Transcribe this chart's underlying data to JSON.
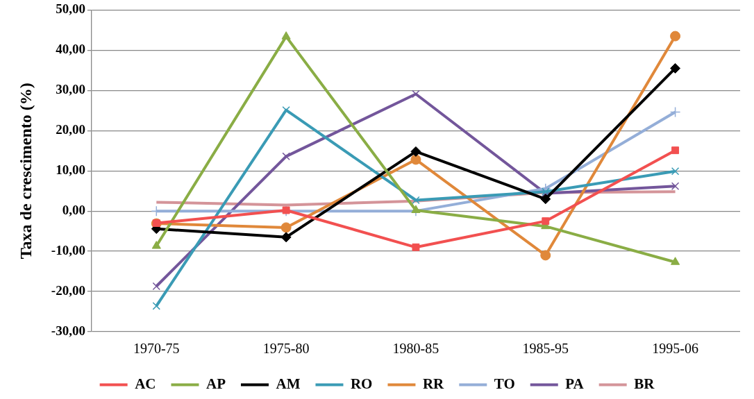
{
  "chart_data": {
    "type": "line",
    "ylabel": "Taxa de crescimento (%)",
    "categories": [
      "1970-75",
      "1975-80",
      "1980-85",
      "1985-95",
      "1995-06"
    ],
    "series": [
      {
        "name": "AC",
        "color": "#f25050",
        "marker": "square",
        "values": [
          -3.0,
          0.2,
          -9.0,
          -2.5,
          15.1
        ]
      },
      {
        "name": "AP",
        "color": "#8aad45",
        "marker": "triangle",
        "values": [
          -8.7,
          43.4,
          0.2,
          -3.8,
          -12.7
        ]
      },
      {
        "name": "AM",
        "color": "#000000",
        "marker": "diamond",
        "values": [
          -4.4,
          -6.5,
          14.8,
          3.0,
          35.5
        ]
      },
      {
        "name": "RO",
        "color": "#3a9bb5",
        "marker": "cross",
        "values": [
          -23.6,
          25.1,
          2.7,
          4.8,
          9.9
        ]
      },
      {
        "name": "RR",
        "color": "#e0883a",
        "marker": "circle",
        "values": [
          -3.1,
          -4.1,
          12.8,
          -11.0,
          43.5
        ]
      },
      {
        "name": "TO",
        "color": "#94aed8",
        "marker": "plus",
        "values": [
          0.0,
          0.0,
          0.0,
          5.6,
          24.6
        ]
      },
      {
        "name": "PA",
        "color": "#73569b",
        "marker": "cross",
        "values": [
          -18.7,
          13.6,
          29.1,
          4.4,
          6.2
        ]
      },
      {
        "name": "BR",
        "color": "#d49499",
        "marker": "none",
        "values": [
          2.2,
          1.5,
          2.5,
          4.6,
          4.8
        ]
      }
    ],
    "ylim": [
      -30,
      50
    ],
    "yticks": [
      {
        "value": -30,
        "label": "-30,00"
      },
      {
        "value": -20,
        "label": "-20,00"
      },
      {
        "value": -10,
        "label": "-10,00"
      },
      {
        "value": 0,
        "label": "0,00"
      },
      {
        "value": 10,
        "label": "10,00"
      },
      {
        "value": 20,
        "label": "20,00"
      },
      {
        "value": 30,
        "label": "30,00"
      },
      {
        "value": 40,
        "label": "40,00"
      },
      {
        "value": 50,
        "label": "50,00"
      }
    ],
    "grid": "y",
    "legend": "bottom",
    "line_style": "solid"
  }
}
